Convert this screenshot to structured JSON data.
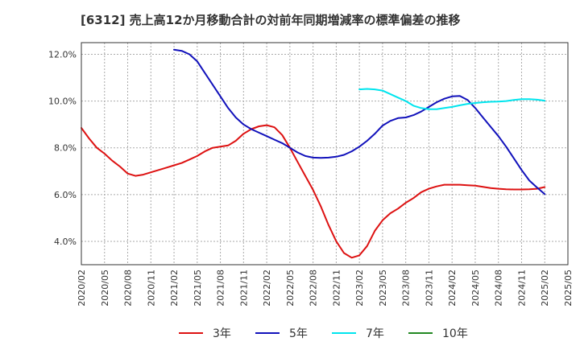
{
  "chart_data": {
    "type": "line",
    "title": "[6312]  売上高12か月移動合計の対前年同期増減率の標準偏差の推移",
    "xlabel": "",
    "ylabel": "",
    "ylim": [
      3.0,
      12.5
    ],
    "yticks": [
      "4.0%",
      "6.0%",
      "8.0%",
      "10.0%",
      "12.0%"
    ],
    "ytick_values": [
      4.0,
      6.0,
      8.0,
      10.0,
      12.0
    ],
    "xticks": [
      "2020/02",
      "2020/05",
      "2020/08",
      "2020/11",
      "2021/02",
      "2021/05",
      "2021/08",
      "2021/11",
      "2022/02",
      "2022/05",
      "2022/08",
      "2022/11",
      "2023/02",
      "2023/05",
      "2023/08",
      "2023/11",
      "2024/02",
      "2024/05",
      "2024/08",
      "2024/11",
      "2025/02",
      "2025/05"
    ],
    "grid": true,
    "legend_position": "bottom",
    "series": [
      {
        "name": "3年",
        "color": "#dd1111",
        "x": [
          "2020/02",
          "2020/03",
          "2020/04",
          "2020/05",
          "2020/06",
          "2020/07",
          "2020/08",
          "2020/09",
          "2020/10",
          "2020/11",
          "2020/12",
          "2021/01",
          "2021/02",
          "2021/03",
          "2021/04",
          "2021/05",
          "2021/06",
          "2021/07",
          "2021/08",
          "2021/09",
          "2021/10",
          "2021/11",
          "2021/12",
          "2022/01",
          "2022/02",
          "2022/03",
          "2022/04",
          "2022/05",
          "2022/06",
          "2022/07",
          "2022/08",
          "2022/09",
          "2022/10",
          "2022/11",
          "2022/12",
          "2023/01",
          "2023/02",
          "2023/03",
          "2023/04",
          "2023/05",
          "2023/06",
          "2023/07",
          "2023/08",
          "2023/09",
          "2023/10",
          "2023/11",
          "2023/12",
          "2024/01",
          "2024/02",
          "2024/03",
          "2024/04",
          "2024/05",
          "2024/06",
          "2024/07",
          "2024/08",
          "2024/09",
          "2024/10",
          "2024/11",
          "2024/12",
          "2025/01",
          "2025/02"
        ],
        "values": [
          8.85,
          8.4,
          8.0,
          7.75,
          7.45,
          7.2,
          6.9,
          6.8,
          6.85,
          6.95,
          7.05,
          7.15,
          7.25,
          7.35,
          7.5,
          7.65,
          7.85,
          8.0,
          8.05,
          8.1,
          8.3,
          8.6,
          8.8,
          8.92,
          8.97,
          8.88,
          8.55,
          8.0,
          7.4,
          6.8,
          6.2,
          5.5,
          4.7,
          4.0,
          3.5,
          3.3,
          3.4,
          3.8,
          4.45,
          4.9,
          5.2,
          5.4,
          5.65,
          5.85,
          6.1,
          6.25,
          6.35,
          6.42,
          6.42,
          6.42,
          6.4,
          6.38,
          6.33,
          6.28,
          6.25,
          6.23,
          6.22,
          6.22,
          6.23,
          6.25,
          6.32
        ]
      },
      {
        "name": "5年",
        "color": "#1111bb",
        "x": [
          "2021/02",
          "2021/03",
          "2021/04",
          "2021/05",
          "2021/06",
          "2021/07",
          "2021/08",
          "2021/09",
          "2021/10",
          "2021/11",
          "2021/12",
          "2022/01",
          "2022/02",
          "2022/03",
          "2022/04",
          "2022/05",
          "2022/06",
          "2022/07",
          "2022/08",
          "2022/09",
          "2022/10",
          "2022/11",
          "2022/12",
          "2023/01",
          "2023/02",
          "2023/03",
          "2023/04",
          "2023/05",
          "2023/06",
          "2023/07",
          "2023/08",
          "2023/09",
          "2023/10",
          "2023/11",
          "2023/12",
          "2024/01",
          "2024/02",
          "2024/03",
          "2024/04",
          "2024/05",
          "2024/06",
          "2024/07",
          "2024/08",
          "2024/09",
          "2024/10",
          "2024/11",
          "2024/12",
          "2025/01",
          "2025/02"
        ],
        "values": [
          12.2,
          12.15,
          12.0,
          11.7,
          11.2,
          10.7,
          10.2,
          9.7,
          9.3,
          9.0,
          8.8,
          8.65,
          8.5,
          8.35,
          8.2,
          8.0,
          7.8,
          7.65,
          7.58,
          7.57,
          7.58,
          7.62,
          7.7,
          7.85,
          8.05,
          8.3,
          8.6,
          8.95,
          9.15,
          9.27,
          9.3,
          9.4,
          9.55,
          9.75,
          9.95,
          10.1,
          10.2,
          10.22,
          10.05,
          9.7,
          9.3,
          8.9,
          8.5,
          8.05,
          7.55,
          7.05,
          6.6,
          6.3,
          6.02
        ]
      },
      {
        "name": "7年",
        "color": "#00e5ee",
        "x": [
          "2023/02",
          "2023/03",
          "2023/04",
          "2023/05",
          "2023/06",
          "2023/07",
          "2023/08",
          "2023/09",
          "2023/10",
          "2023/11",
          "2023/12",
          "2024/01",
          "2024/02",
          "2024/03",
          "2024/04",
          "2024/05",
          "2024/06",
          "2024/07",
          "2024/08",
          "2024/09",
          "2024/10",
          "2024/11",
          "2024/12",
          "2025/01",
          "2025/02"
        ],
        "values": [
          10.5,
          10.52,
          10.5,
          10.45,
          10.3,
          10.15,
          10.0,
          9.8,
          9.7,
          9.65,
          9.65,
          9.7,
          9.75,
          9.82,
          9.88,
          9.92,
          9.95,
          9.97,
          9.98,
          10.0,
          10.05,
          10.08,
          10.08,
          10.06,
          10.02
        ]
      },
      {
        "name": "10年",
        "color": "#228822",
        "x": [],
        "values": []
      }
    ]
  }
}
